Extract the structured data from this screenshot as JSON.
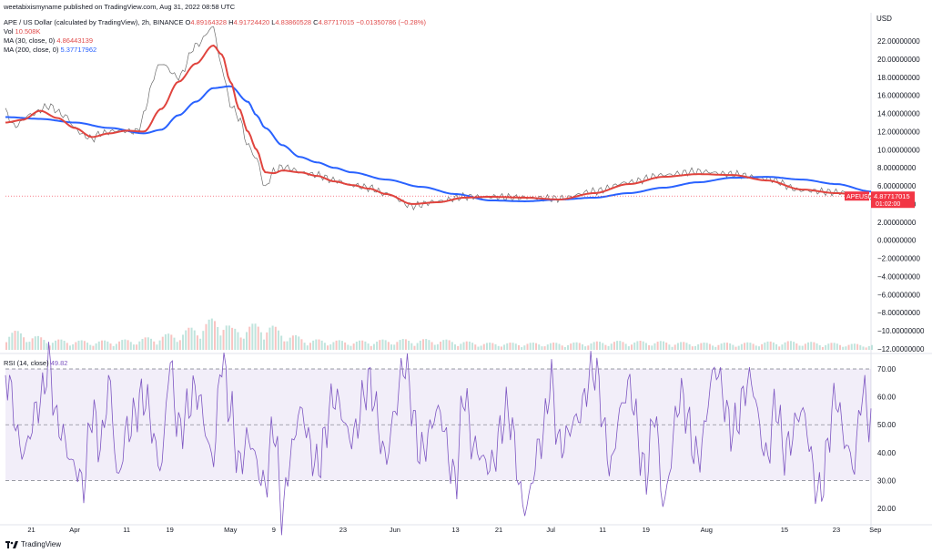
{
  "header": {
    "published": "weetabixismyname published on TradingView.com, Aug 31, 2022 08:58 UTC",
    "symbol_line": "APE / US Dollar (calculated by TradingView), 2h, BINANCE",
    "open_label": "O",
    "open": "4.89164328",
    "high_label": "H",
    "high": "4.91724420",
    "low_label": "L",
    "low": "4.83860528",
    "close_label": "C",
    "close": "4.87717015",
    "change": "−0.01350786 (−0.28%)",
    "vol_label": "Vol",
    "vol": "10.508K",
    "ma30_label": "MA (30, close, 0)",
    "ma30": "4.86443139",
    "ma200_label": "MA (200, close, 0)",
    "ma200": "5.37717962",
    "rsi_label": "RSI (14, close)",
    "rsi": "49.82"
  },
  "footer": {
    "brand": "TradingView"
  },
  "colors": {
    "price": "#6d6d6d",
    "ma30": "#e0443e",
    "ma200": "#2962ff",
    "rsi": "#7e57c2",
    "last": "#f23645"
  },
  "chart_data": [
    {
      "type": "line",
      "title": "APE / US Dollar",
      "currency": "USD",
      "y_ticks": [
        "22.00000000",
        "20.00000000",
        "18.00000000",
        "16.00000000",
        "14.00000000",
        "12.00000000",
        "10.00000000",
        "8.00000000",
        "6.00000000",
        "4.00000000",
        "2.00000000",
        "0.00000000",
        "−2.00000000",
        "−4.00000000",
        "−6.00000000",
        "−8.00000000",
        "−10.00000000",
        "−12.00000000"
      ],
      "ylim": [
        -12,
        24
      ],
      "x_ticks": [
        "21",
        "Apr",
        "11",
        "19",
        "May",
        "9",
        "23",
        "Jun",
        "13",
        "21",
        "Jul",
        "11",
        "19",
        "Aug",
        "15",
        "23",
        "Sep"
      ],
      "last_price_label": "APEUSD",
      "last_price": "4.87717015",
      "countdown": "01:02:00",
      "series": [
        {
          "name": "APEUSD",
          "x": [
            0,
            1,
            3,
            5,
            7,
            8,
            9,
            10,
            11,
            13,
            15,
            18,
            20,
            22,
            24,
            25,
            26,
            27,
            28,
            29,
            30,
            31,
            32,
            33,
            34,
            36,
            38,
            40,
            42,
            44,
            47,
            50,
            53,
            56,
            60,
            64,
            68,
            72,
            76,
            80,
            84,
            88,
            92,
            96,
            100
          ],
          "values": [
            14.2,
            12.6,
            13.9,
            14.8,
            13.7,
            12.4,
            11.6,
            11.2,
            11.8,
            12.1,
            12.0,
            19.5,
            18.0,
            21.5,
            23.5,
            19.0,
            15.0,
            13.5,
            10.5,
            9.0,
            5.8,
            7.6,
            8.1,
            7.9,
            7.5,
            7.2,
            6.6,
            6.1,
            5.8,
            5.1,
            3.8,
            4.3,
            4.8,
            4.8,
            4.7,
            4.6,
            5.4,
            6.4,
            7.2,
            7.6,
            7.3,
            6.8,
            5.5,
            5.3,
            4.88
          ]
        },
        {
          "name": "MA (30, close, 0)",
          "x": [
            0,
            2,
            4,
            6,
            8,
            10,
            12,
            14,
            16,
            18,
            20,
            22,
            24,
            25,
            26,
            27,
            28,
            29,
            30,
            31,
            32,
            34,
            36,
            38,
            40,
            42,
            44,
            47,
            50,
            53,
            56,
            60,
            64,
            68,
            72,
            76,
            80,
            84,
            88,
            92,
            96,
            100
          ],
          "values": [
            13.0,
            13.3,
            14.3,
            13.5,
            12.4,
            11.4,
            11.8,
            12.1,
            12.0,
            14.5,
            17.5,
            19.5,
            21.5,
            20.5,
            17.5,
            14.5,
            12.0,
            10.0,
            7.5,
            7.4,
            7.7,
            7.5,
            7.1,
            6.5,
            6.1,
            5.7,
            5.1,
            4.0,
            4.2,
            4.7,
            4.8,
            4.7,
            4.5,
            5.2,
            6.2,
            7.0,
            7.3,
            7.2,
            6.6,
            5.6,
            5.2,
            4.86
          ]
        },
        {
          "name": "MA (200, close, 0)",
          "x": [
            0,
            4,
            8,
            12,
            16,
            18,
            20,
            22,
            24,
            26,
            28,
            29,
            30,
            32,
            34,
            36,
            38,
            40,
            44,
            48,
            52,
            56,
            60,
            64,
            68,
            72,
            76,
            80,
            84,
            88,
            92,
            96,
            100
          ],
          "values": [
            13.6,
            13.4,
            13.0,
            12.4,
            11.8,
            12.2,
            13.8,
            15.3,
            16.8,
            17.0,
            15.3,
            13.8,
            12.4,
            10.5,
            9.2,
            8.6,
            8.0,
            7.5,
            6.7,
            5.9,
            5.1,
            4.4,
            4.3,
            4.5,
            4.7,
            5.2,
            5.8,
            6.4,
            6.9,
            7.0,
            6.7,
            6.2,
            5.38
          ]
        }
      ]
    },
    {
      "type": "line",
      "title": "RSI (14, close)",
      "y_ticks": [
        "70.00",
        "60.00",
        "50.00",
        "40.00",
        "30.00",
        "20.00"
      ],
      "ylim": [
        15,
        74
      ],
      "bands": [
        30,
        50,
        70
      ],
      "series": [
        {
          "name": "RSI",
          "x": [
            0,
            2,
            4,
            5,
            6,
            8,
            9,
            10,
            11,
            12,
            13,
            14,
            16,
            18,
            19,
            20,
            22,
            24,
            25,
            26,
            27,
            28,
            30,
            31,
            32,
            33,
            34,
            36,
            38,
            40,
            42,
            44,
            45,
            46,
            48,
            50,
            52,
            53,
            54,
            56,
            58,
            60,
            62,
            63,
            64,
            66,
            68,
            70,
            71,
            72,
            74,
            75,
            76,
            78,
            80,
            82,
            84,
            86,
            88,
            89,
            90,
            92,
            94,
            96,
            97,
            98,
            99,
            100
          ],
          "values": [
            68,
            40,
            58,
            72,
            50,
            35,
            28,
            55,
            42,
            65,
            30,
            48,
            60,
            35,
            72,
            48,
            62,
            38,
            74,
            55,
            35,
            45,
            28,
            50,
            18,
            40,
            55,
            35,
            60,
            45,
            65,
            38,
            55,
            72,
            40,
            55,
            30,
            62,
            42,
            35,
            55,
            20,
            45,
            66,
            42,
            52,
            70,
            35,
            55,
            64,
            32,
            55,
            22,
            60,
            38,
            70,
            48,
            66,
            38,
            58,
            40,
            55,
            25,
            60,
            44,
            35,
            62,
            50
          ]
        }
      ]
    },
    {
      "type": "bar",
      "title": "Vol",
      "series": [
        {
          "name": "Vol",
          "x": [
            0,
            5,
            10,
            15,
            20,
            24,
            25,
            26,
            28,
            30,
            32,
            35,
            40,
            45,
            50,
            55,
            60,
            65,
            70,
            75,
            80,
            85,
            90,
            95,
            100
          ],
          "values": [
            0.6,
            0.3,
            0.25,
            0.3,
            0.5,
            0.9,
            1.0,
            0.6,
            0.7,
            0.8,
            0.5,
            0.3,
            0.25,
            0.3,
            0.3,
            0.2,
            0.2,
            0.2,
            0.25,
            0.25,
            0.2,
            0.2,
            0.25,
            0.2,
            0.15
          ]
        }
      ]
    }
  ]
}
